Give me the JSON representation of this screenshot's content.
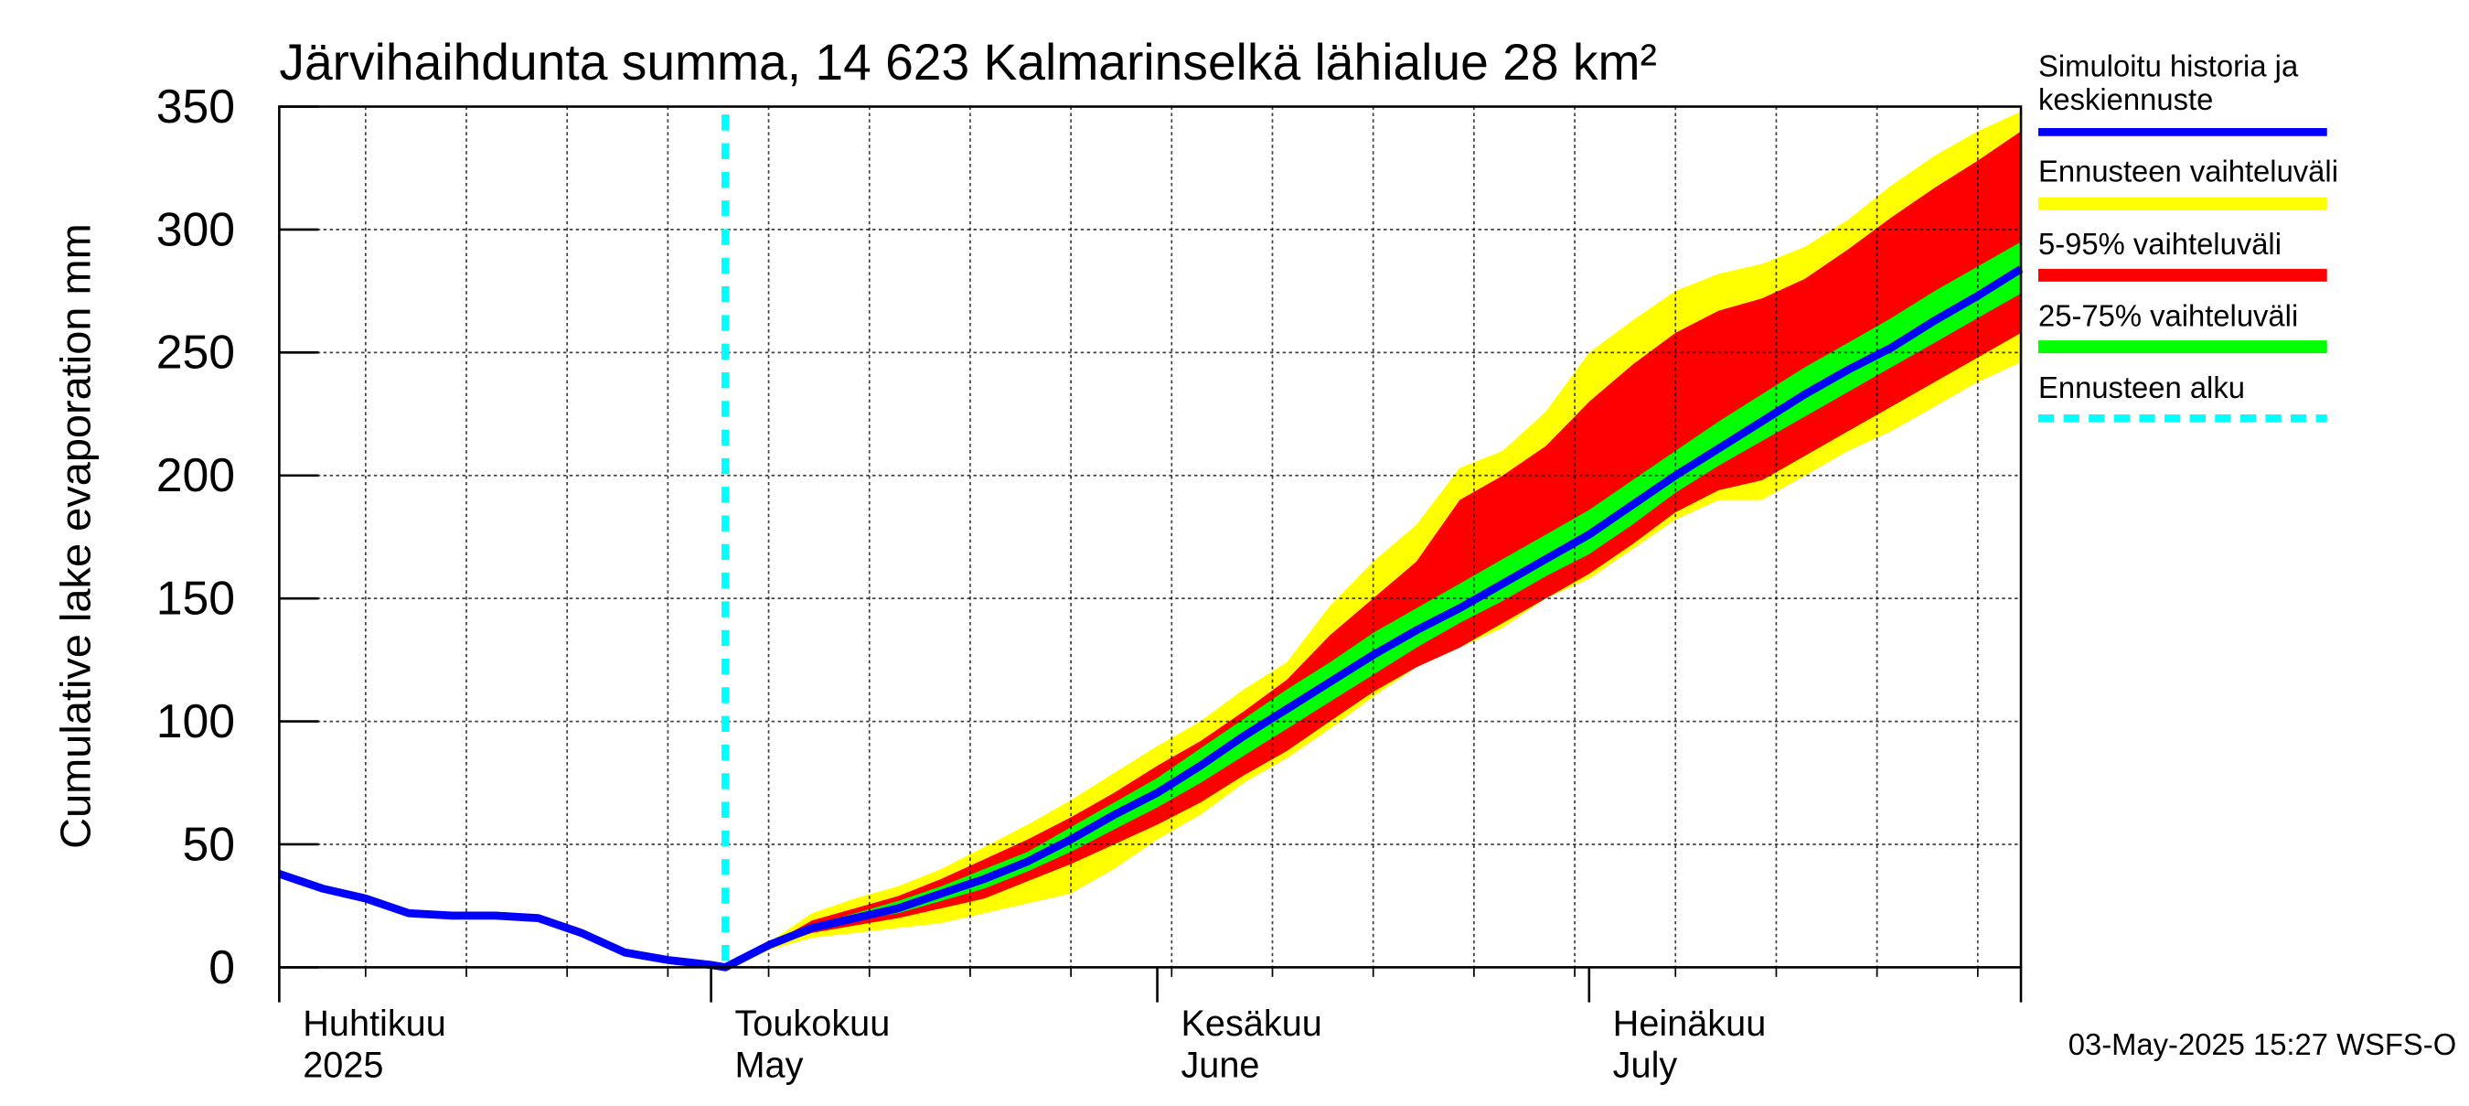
{
  "chart_data": {
    "type": "area",
    "title": "Järvihaihdunta summa, 14 623 Kalmarinselkä lähialue 28 km²",
    "ylabel": "Cumulative lake evaporation   mm",
    "ylim": [
      0,
      350
    ],
    "yticks": [
      0,
      50,
      100,
      150,
      200,
      250,
      300,
      350
    ],
    "xlim": [
      "2025-04-01",
      "2025-07-31"
    ],
    "grid": true,
    "month_labels": [
      {
        "fi": "Huhtikuu",
        "en": "2025",
        "start": "2025-04-01"
      },
      {
        "fi": "Toukokuu",
        "en": "May",
        "start": "2025-05-01"
      },
      {
        "fi": "Kesäkuu",
        "en": "June",
        "start": "2025-06-01"
      },
      {
        "fi": "Heinäkuu",
        "en": "July",
        "start": "2025-07-01"
      }
    ],
    "forecast_start": "2025-05-02",
    "legend": [
      {
        "label": "Simuloitu historia ja keskiennuste",
        "color": "#0000ff",
        "style": "line"
      },
      {
        "label": "Ennusteen vaihteluväli",
        "color": "#ffff00",
        "style": "band"
      },
      {
        "label": "5-95% vaihteluväli",
        "color": "#ff0000",
        "style": "band"
      },
      {
        "label": "25-75% vaihteluväli",
        "color": "#00ff00",
        "style": "band"
      },
      {
        "label": "Ennusteen alku",
        "color": "#00ffff",
        "style": "dashed"
      }
    ],
    "legend_position": "right",
    "series": [
      {
        "name": "Simuloitu historia ja keskiennuste",
        "x": [
          "2025-04-01",
          "2025-04-04",
          "2025-04-07",
          "2025-04-10",
          "2025-04-13",
          "2025-04-16",
          "2025-04-19",
          "2025-04-22",
          "2025-04-25",
          "2025-04-28",
          "2025-05-01",
          "2025-05-02",
          "2025-05-05",
          "2025-05-08",
          "2025-05-11",
          "2025-05-14",
          "2025-05-17",
          "2025-05-20",
          "2025-05-23",
          "2025-05-26",
          "2025-05-29",
          "2025-06-01",
          "2025-06-04",
          "2025-06-07",
          "2025-06-10",
          "2025-06-13",
          "2025-06-16",
          "2025-06-19",
          "2025-06-22",
          "2025-06-25",
          "2025-06-28",
          "2025-07-01",
          "2025-07-04",
          "2025-07-07",
          "2025-07-10",
          "2025-07-13",
          "2025-07-16",
          "2025-07-19",
          "2025-07-22",
          "2025-07-25",
          "2025-07-28",
          "2025-07-31"
        ],
        "y": [
          38,
          32,
          28,
          22,
          21,
          21,
          20,
          14,
          6,
          3,
          1,
          0,
          9,
          16,
          20,
          24,
          30,
          36,
          43,
          52,
          62,
          71,
          82,
          94,
          105,
          116,
          127,
          137,
          146,
          156,
          166,
          176,
          188,
          200,
          211,
          222,
          233,
          243,
          252,
          263,
          273,
          284
        ]
      },
      {
        "name": "Ennusteen vaihteluväli",
        "x": [
          "2025-05-02",
          "2025-05-05",
          "2025-05-08",
          "2025-05-11",
          "2025-05-14",
          "2025-05-17",
          "2025-05-20",
          "2025-05-23",
          "2025-05-26",
          "2025-05-29",
          "2025-06-01",
          "2025-06-04",
          "2025-06-07",
          "2025-06-10",
          "2025-06-13",
          "2025-06-16",
          "2025-06-19",
          "2025-06-22",
          "2025-06-25",
          "2025-06-28",
          "2025-07-01",
          "2025-07-04",
          "2025-07-07",
          "2025-07-10",
          "2025-07-13",
          "2025-07-16",
          "2025-07-19",
          "2025-07-22",
          "2025-07-25",
          "2025-07-28",
          "2025-07-31"
        ],
        "low": [
          0,
          7,
          12,
          14,
          16,
          18,
          22,
          26,
          30,
          40,
          52,
          62,
          75,
          85,
          97,
          110,
          122,
          130,
          138,
          150,
          158,
          170,
          182,
          190,
          190,
          200,
          210,
          218,
          228,
          238,
          246
        ],
        "high": [
          0,
          10,
          22,
          28,
          33,
          40,
          49,
          58,
          68,
          79,
          90,
          100,
          113,
          124,
          147,
          165,
          180,
          203,
          210,
          226,
          250,
          263,
          275,
          282,
          286,
          293,
          304,
          318,
          330,
          340,
          348
        ]
      },
      {
        "name": "5-95% vaihteluväli",
        "x": [
          "2025-05-02",
          "2025-05-05",
          "2025-05-08",
          "2025-05-11",
          "2025-05-14",
          "2025-05-17",
          "2025-05-20",
          "2025-05-23",
          "2025-05-26",
          "2025-05-29",
          "2025-06-01",
          "2025-06-04",
          "2025-06-07",
          "2025-06-10",
          "2025-06-13",
          "2025-06-16",
          "2025-06-19",
          "2025-06-22",
          "2025-06-25",
          "2025-06-28",
          "2025-07-01",
          "2025-07-04",
          "2025-07-07",
          "2025-07-10",
          "2025-07-13",
          "2025-07-16",
          "2025-07-19",
          "2025-07-22",
          "2025-07-25",
          "2025-07-28",
          "2025-07-31"
        ],
        "low": [
          0,
          8,
          14,
          17,
          20,
          24,
          28,
          35,
          42,
          50,
          58,
          67,
          78,
          88,
          100,
          112,
          122,
          130,
          140,
          150,
          160,
          172,
          185,
          194,
          198,
          208,
          218,
          228,
          238,
          248,
          258
        ],
        "high": [
          0,
          9,
          19,
          24,
          29,
          36,
          44,
          52,
          61,
          71,
          82,
          92,
          104,
          117,
          135,
          150,
          165,
          190,
          200,
          212,
          230,
          245,
          258,
          267,
          272,
          280,
          292,
          305,
          317,
          328,
          340
        ]
      },
      {
        "name": "25-75% vaihteluväli",
        "x": [
          "2025-05-02",
          "2025-05-05",
          "2025-05-08",
          "2025-05-11",
          "2025-05-14",
          "2025-05-17",
          "2025-05-20",
          "2025-05-23",
          "2025-05-26",
          "2025-05-29",
          "2025-06-01",
          "2025-06-04",
          "2025-06-07",
          "2025-06-10",
          "2025-06-13",
          "2025-06-16",
          "2025-06-19",
          "2025-06-22",
          "2025-06-25",
          "2025-06-28",
          "2025-07-01",
          "2025-07-04",
          "2025-07-07",
          "2025-07-10",
          "2025-07-13",
          "2025-07-16",
          "2025-07-19",
          "2025-07-22",
          "2025-07-25",
          "2025-07-28",
          "2025-07-31"
        ],
        "low": [
          0,
          8,
          15,
          19,
          22,
          27,
          32,
          39,
          47,
          56,
          65,
          75,
          86,
          97,
          108,
          119,
          130,
          140,
          149,
          159,
          168,
          180,
          193,
          204,
          214,
          224,
          234,
          244,
          254,
          264,
          274
        ],
        "high": [
          0,
          9,
          17,
          22,
          27,
          33,
          40,
          47,
          57,
          67,
          77,
          89,
          101,
          113,
          124,
          136,
          146,
          156,
          166,
          176,
          186,
          198,
          210,
          222,
          233,
          244,
          254,
          264,
          275,
          285,
          295
        ]
      }
    ]
  },
  "footer": {
    "timestamp": "03-May-2025 15:27 WSFS-O"
  }
}
